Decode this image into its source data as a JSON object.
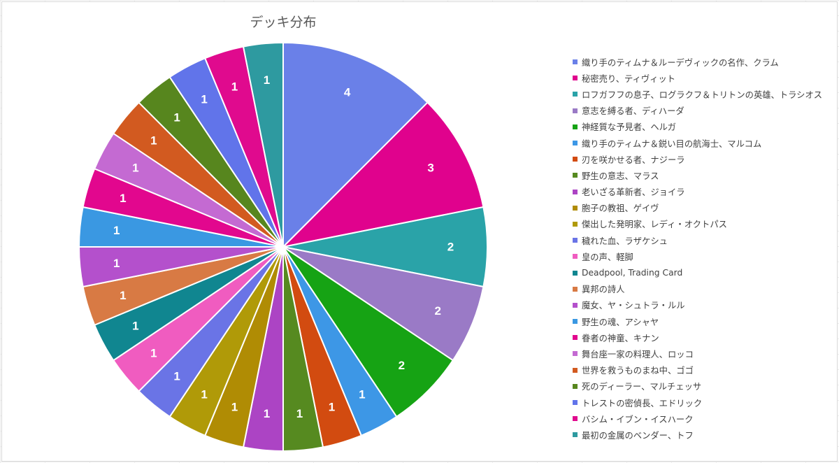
{
  "chart_data": {
    "type": "pie",
    "title": "デッキ分布",
    "legend_position": "right",
    "slices": [
      {
        "label": "織り手のティムナ＆ルーデヴィックの名作、クラム",
        "value": 4,
        "color": "#6a80e8"
      },
      {
        "label": "秘密売り、ティヴィット",
        "value": 3,
        "color": "#e0028d"
      },
      {
        "label": "ロフガフフの息子、ログラクフ＆トリトンの英雄、トラシオス",
        "value": 2,
        "color": "#2aa3a8"
      },
      {
        "label": "意志を縛る者、ディハーダ",
        "value": 2,
        "color": "#9a7ac6"
      },
      {
        "label": "神経質な予見者、ヘルガ",
        "value": 2,
        "color": "#16a314"
      },
      {
        "label": "織り手のティムナ＆鋭い目の航海士、マルコム",
        "value": 1,
        "color": "#3d97e6"
      },
      {
        "label": "刃を咲かせる者、ナジーラ",
        "value": 1,
        "color": "#d24b10"
      },
      {
        "label": "野生の意志、マラス",
        "value": 1,
        "color": "#568a20"
      },
      {
        "label": "老いざる革新者、ジョイラ",
        "value": 1,
        "color": "#ac44c4"
      },
      {
        "label": "胞子の教祖、ゲイヴ",
        "value": 1,
        "color": "#b08c04"
      },
      {
        "label": "傑出した発明家、レディ・オクトパス",
        "value": 1,
        "color": "#b09a08"
      },
      {
        "label": "穢れた血、ラザケシュ",
        "value": 1,
        "color": "#6a74e6"
      },
      {
        "label": "皇の声、軽脚",
        "value": 1,
        "color": "#f05cc0"
      },
      {
        "label": "Deadpool, Trading Card",
        "value": 1,
        "color": "#108690"
      },
      {
        "label": "異邦の詩人",
        "value": 1,
        "color": "#d87a44"
      },
      {
        "label": "魔女、ヤ・シュトラ・ルル",
        "value": 1,
        "color": "#b450cc"
      },
      {
        "label": "野生の魂、アシャヤ",
        "value": 1,
        "color": "#3a98e2"
      },
      {
        "label": "眷者の神童、キナン",
        "value": 1,
        "color": "#e2078e"
      },
      {
        "label": "舞台座一家の料理人、ロッコ",
        "value": 1,
        "color": "#c46ad2"
      },
      {
        "label": "世界を救うものまね中、ゴゴ",
        "value": 1,
        "color": "#d25a20"
      },
      {
        "label": "死のディーラー、マルチェッサ",
        "value": 1,
        "color": "#57861e"
      },
      {
        "label": "トレストの密偵長、エドリック",
        "value": 1,
        "color": "#6174ea"
      },
      {
        "label": "バシム・イブン・イスハーク",
        "value": 1,
        "color": "#e00a8e"
      },
      {
        "label": "最初の金属のベンダー、トフ",
        "value": 1,
        "color": "#2e9aa0"
      }
    ]
  }
}
